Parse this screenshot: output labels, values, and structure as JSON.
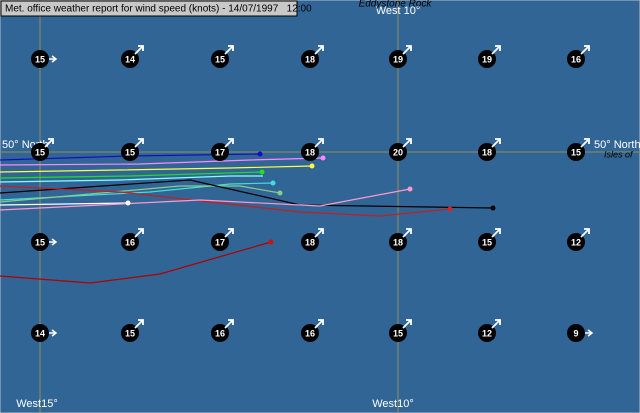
{
  "header": {
    "title": "Met. office weather report for wind speed (knots) - 14/07/1997   12:00"
  },
  "labels": {
    "top_longitude": "West 10°",
    "top_place": "Eddystone Rock",
    "left_latitude": "50° North",
    "right_latitude": "50° North",
    "right_place": "Isles of",
    "bottom_left_longitude": "West15°",
    "bottom_right_longitude": "West10°"
  },
  "stations": {
    "rows": [
      [
        "15",
        "14",
        "15",
        "18",
        "19",
        "19",
        "16"
      ],
      [
        "15",
        "15",
        "17",
        "18",
        "20",
        "18",
        "15"
      ],
      [
        "15",
        "16",
        "17",
        "18",
        "18",
        "15",
        "12"
      ],
      [
        "14",
        "15",
        "16",
        "16",
        "15",
        "12",
        "9"
      ]
    ]
  }
}
